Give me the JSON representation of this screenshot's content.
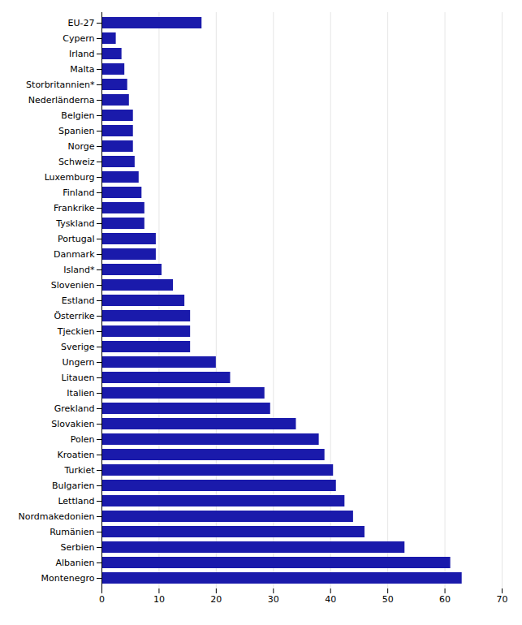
{
  "chart_data": {
    "type": "bar",
    "orientation": "horizontal",
    "categories": [
      "EU-27",
      "Cypern",
      "Irland",
      "Malta",
      "Storbritannien*",
      "Nederländerna",
      "Belgien",
      "Spanien",
      "Norge",
      "Schweiz",
      "Luxemburg",
      "Finland",
      "Frankrike",
      "Tyskland",
      "Portugal",
      "Danmark",
      "Island*",
      "Slovenien",
      "Estland",
      "Österrike",
      "Tjeckien",
      "Sverige",
      "Ungern",
      "Litauen",
      "Italien",
      "Grekland",
      "Slovakien",
      "Polen",
      "Kroatien",
      "Turkiet",
      "Bulgarien",
      "Lettland",
      "Nordmakedonien",
      "Rumänien",
      "Serbien",
      "Albanien",
      "Montenegro"
    ],
    "values": [
      17.5,
      2.5,
      3.5,
      4.0,
      4.5,
      4.8,
      5.5,
      5.5,
      5.5,
      5.8,
      6.5,
      7.0,
      7.5,
      7.5,
      9.5,
      9.5,
      10.5,
      12.5,
      14.5,
      15.5,
      15.5,
      15.5,
      20.0,
      22.5,
      28.5,
      29.5,
      34.0,
      38.0,
      39.0,
      40.5,
      41.0,
      42.5,
      44.0,
      46.0,
      53.0,
      61.0,
      63.0
    ],
    "color": "#1a1aab",
    "xlim": [
      0,
      70
    ],
    "xticks": [
      0,
      10,
      20,
      30,
      40,
      50,
      60,
      70
    ],
    "grid": true
  }
}
